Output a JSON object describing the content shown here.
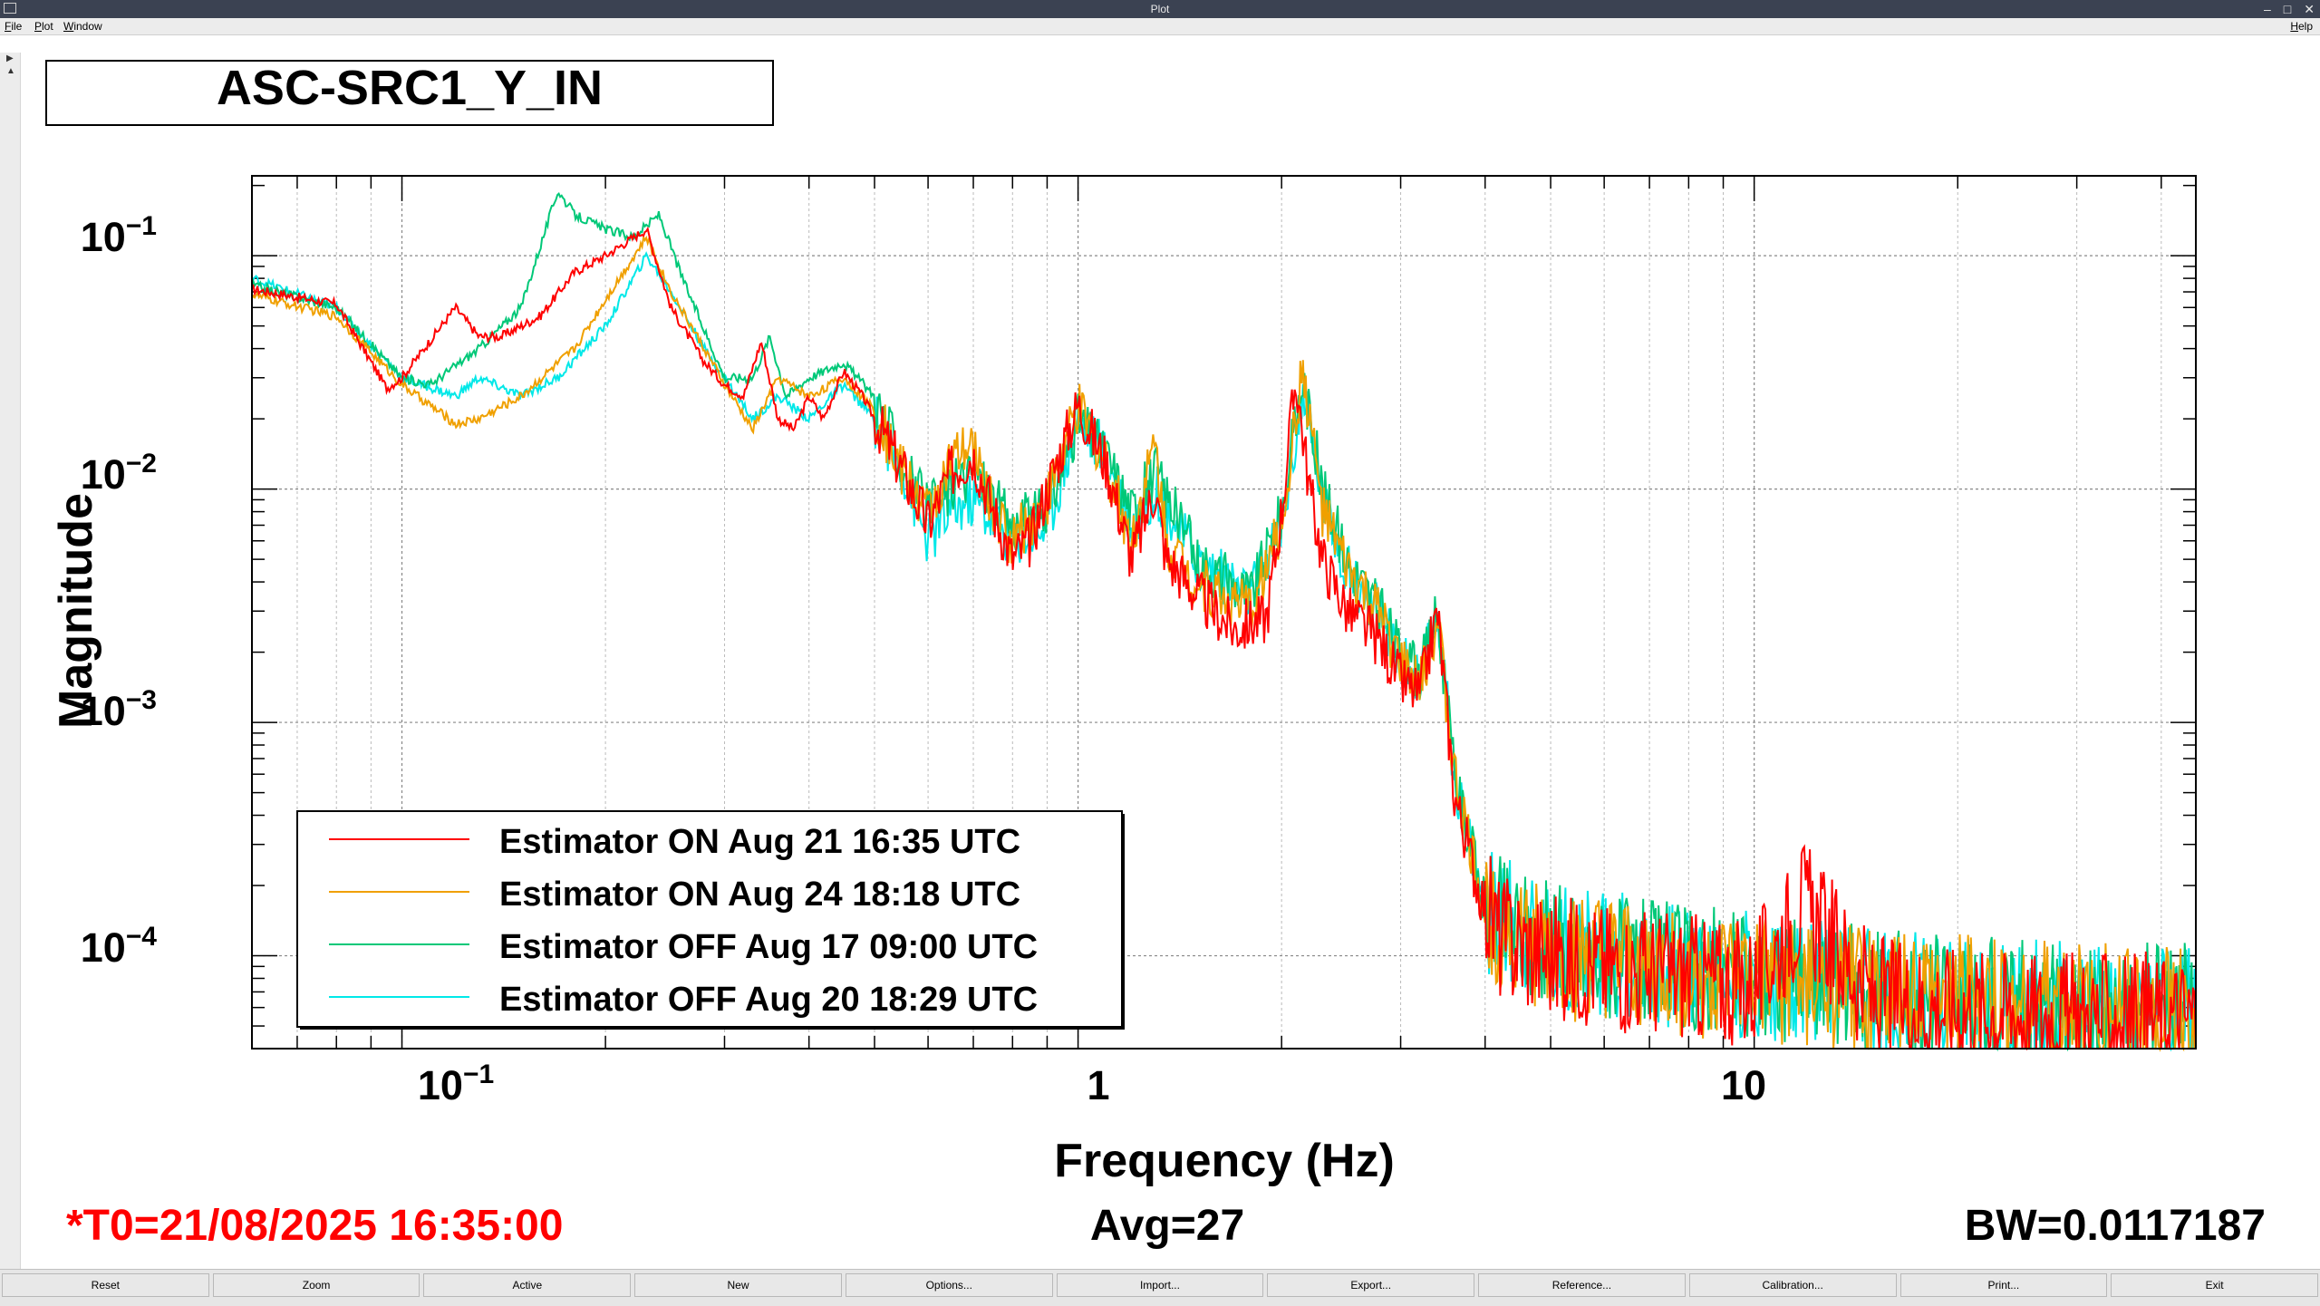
{
  "window": {
    "title": "Plot"
  },
  "menu": {
    "items": [
      "File",
      "Plot",
      "Window"
    ],
    "help": "Help"
  },
  "plot": {
    "title": "ASC-SRC1_Y_IN",
    "ylabel": "Magnitude",
    "xlabel": "Frequency (Hz)",
    "x_tick_labels": [
      "10",
      "1",
      "10"
    ],
    "x_tick_exponents": [
      "−1",
      "",
      ""
    ],
    "y_tick_labels": [
      "10",
      "10",
      "10",
      "10"
    ],
    "y_tick_exponents": [
      "−1",
      "−2",
      "−3",
      "−4"
    ],
    "t0": "*T0=21/08/2025 16:35:00",
    "avg": "Avg=27",
    "bw": "BW=0.0117187"
  },
  "colors": {
    "red": "#ff0000",
    "orange": "#f0a000",
    "green": "#00c878",
    "cyan": "#00e8e8",
    "t0": "#ff0000"
  },
  "chart_data": {
    "type": "line",
    "title": "ASC-SRC1_Y_IN",
    "xlabel": "Frequency (Hz)",
    "ylabel": "Magnitude",
    "x_scale": "log",
    "y_scale": "log",
    "xlim": [
      0.06,
      45
    ],
    "ylim": [
      4e-05,
      0.22
    ],
    "grid": true,
    "legend_position": "bottom-left",
    "series": [
      {
        "name": "Estimator ON Aug 21 16:35 UTC",
        "color": "#ff0000",
        "x": [
          0.06,
          0.08,
          0.095,
          0.1,
          0.12,
          0.13,
          0.14,
          0.16,
          0.18,
          0.2,
          0.23,
          0.25,
          0.28,
          0.3,
          0.32,
          0.34,
          0.36,
          0.38,
          0.4,
          0.42,
          0.45,
          0.48,
          0.5,
          0.55,
          0.6,
          0.65,
          0.7,
          0.75,
          0.8,
          0.85,
          0.9,
          1.0,
          1.05,
          1.1,
          1.2,
          1.3,
          1.35,
          1.4,
          1.5,
          1.7,
          1.9,
          2.0,
          2.1,
          2.2,
          2.3,
          2.5,
          2.8,
          3.0,
          3.2,
          3.4,
          3.6,
          3.9,
          4.2,
          5,
          7,
          10,
          11.8,
          15,
          20,
          30,
          45
        ],
        "y": [
          0.072,
          0.062,
          0.027,
          0.03,
          0.06,
          0.045,
          0.045,
          0.055,
          0.085,
          0.1,
          0.13,
          0.06,
          0.035,
          0.028,
          0.025,
          0.043,
          0.02,
          0.018,
          0.025,
          0.02,
          0.032,
          0.025,
          0.02,
          0.012,
          0.007,
          0.012,
          0.014,
          0.008,
          0.005,
          0.006,
          0.01,
          0.023,
          0.017,
          0.013,
          0.005,
          0.01,
          0.005,
          0.0045,
          0.0035,
          0.0025,
          0.0028,
          0.008,
          0.03,
          0.01,
          0.005,
          0.003,
          0.0022,
          0.0015,
          0.0013,
          0.003,
          0.0005,
          0.0002,
          0.00012,
          0.0001,
          8.5e-05,
          7.5e-05,
          0.00017,
          6.5e-05,
          6e-05,
          5.5e-05,
          5.5e-05
        ]
      },
      {
        "name": "Estimator ON Aug 24 18:18 UTC",
        "color": "#f0a000",
        "x": [
          0.06,
          0.08,
          0.1,
          0.12,
          0.13,
          0.15,
          0.18,
          0.2,
          0.23,
          0.25,
          0.28,
          0.3,
          0.33,
          0.36,
          0.4,
          0.45,
          0.5,
          0.55,
          0.6,
          0.65,
          0.7,
          0.75,
          0.8,
          0.9,
          1.0,
          1.1,
          1.2,
          1.3,
          1.35,
          1.5,
          1.8,
          2.0,
          2.15,
          2.3,
          2.5,
          2.8,
          3.0,
          3.2,
          3.4,
          3.6,
          4.0,
          5,
          8,
          15,
          30,
          45
        ],
        "y": [
          0.068,
          0.055,
          0.028,
          0.019,
          0.02,
          0.025,
          0.04,
          0.065,
          0.12,
          0.07,
          0.04,
          0.028,
          0.018,
          0.03,
          0.025,
          0.03,
          0.022,
          0.012,
          0.008,
          0.013,
          0.015,
          0.008,
          0.006,
          0.009,
          0.022,
          0.013,
          0.006,
          0.016,
          0.006,
          0.004,
          0.003,
          0.007,
          0.033,
          0.008,
          0.0045,
          0.0028,
          0.0018,
          0.0014,
          0.0028,
          0.0006,
          0.00015,
          0.0001,
          8e-05,
          7e-05,
          6e-05,
          6e-05
        ]
      },
      {
        "name": "Estimator OFF Aug 17 09:00 UTC",
        "color": "#00c878",
        "x": [
          0.06,
          0.08,
          0.1,
          0.11,
          0.13,
          0.15,
          0.17,
          0.18,
          0.2,
          0.22,
          0.24,
          0.26,
          0.3,
          0.33,
          0.35,
          0.37,
          0.4,
          0.45,
          0.5,
          0.55,
          0.6,
          0.65,
          0.7,
          0.8,
          0.9,
          1.0,
          1.1,
          1.2,
          1.3,
          1.5,
          1.8,
          2.0,
          2.15,
          2.3,
          2.5,
          2.8,
          3.0,
          3.2,
          3.4,
          3.6,
          4.0,
          5,
          8,
          15,
          30,
          45
        ],
        "y": [
          0.075,
          0.06,
          0.03,
          0.028,
          0.04,
          0.06,
          0.19,
          0.15,
          0.13,
          0.12,
          0.15,
          0.08,
          0.03,
          0.03,
          0.045,
          0.025,
          0.03,
          0.035,
          0.025,
          0.013,
          0.008,
          0.01,
          0.012,
          0.007,
          0.008,
          0.02,
          0.014,
          0.008,
          0.012,
          0.005,
          0.0035,
          0.008,
          0.03,
          0.01,
          0.005,
          0.003,
          0.002,
          0.0016,
          0.003,
          0.0006,
          0.00016,
          0.00011,
          9e-05,
          7e-05,
          6e-05,
          6e-05
        ]
      },
      {
        "name": "Estimator OFF Aug 20 18:29 UTC",
        "color": "#00e8e8",
        "x": [
          0.06,
          0.08,
          0.1,
          0.12,
          0.13,
          0.15,
          0.17,
          0.2,
          0.23,
          0.25,
          0.28,
          0.3,
          0.33,
          0.36,
          0.4,
          0.45,
          0.5,
          0.55,
          0.6,
          0.65,
          0.7,
          0.8,
          0.9,
          1.0,
          1.1,
          1.2,
          1.3,
          1.5,
          1.8,
          2.0,
          2.15,
          2.3,
          2.5,
          2.8,
          3.0,
          3.2,
          3.4,
          3.6,
          4.0,
          5,
          8,
          15,
          30,
          45
        ],
        "y": [
          0.08,
          0.06,
          0.03,
          0.025,
          0.03,
          0.025,
          0.03,
          0.05,
          0.1,
          0.07,
          0.04,
          0.03,
          0.02,
          0.025,
          0.02,
          0.028,
          0.02,
          0.012,
          0.006,
          0.008,
          0.009,
          0.006,
          0.007,
          0.02,
          0.014,
          0.007,
          0.01,
          0.005,
          0.0035,
          0.007,
          0.025,
          0.009,
          0.0045,
          0.0028,
          0.0019,
          0.0015,
          0.003,
          0.0006,
          0.00016,
          0.00011,
          9e-05,
          7e-05,
          6e-05,
          6e-05
        ]
      }
    ]
  },
  "buttons": [
    "Reset",
    "Zoom",
    "Active",
    "New",
    "Options...",
    "Import...",
    "Export...",
    "Reference...",
    "Calibration...",
    "Print...",
    "Exit"
  ]
}
